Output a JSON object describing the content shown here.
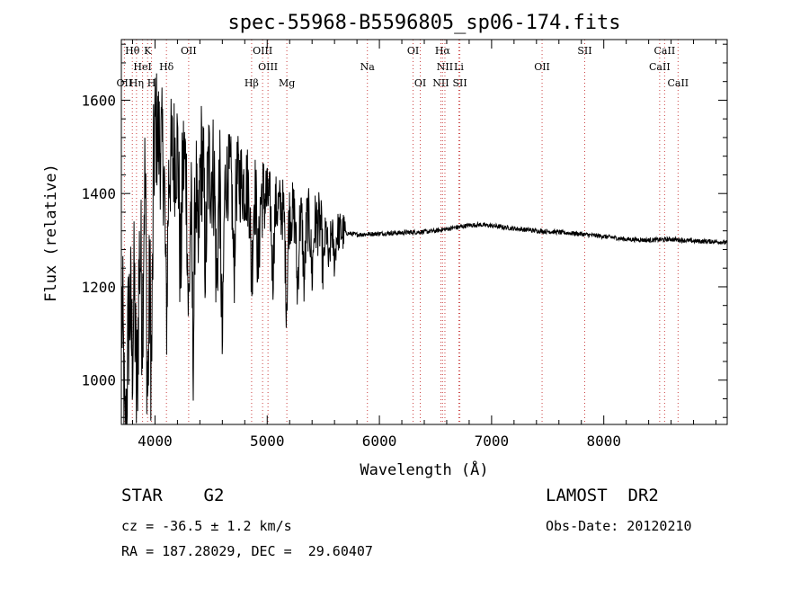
{
  "chart_data": {
    "type": "line",
    "title": "spec-55968-B5596805_sp06-174.fits",
    "xlabel": "Wavelength (Å)",
    "ylabel": "Flux (relative)",
    "xlim": [
      3700,
      9100
    ],
    "ylim": [
      905,
      1730
    ],
    "x_ticks": [
      4000,
      5000,
      6000,
      7000,
      8000
    ],
    "y_ticks": [
      1000,
      1200,
      1400,
      1600
    ],
    "grid": false,
    "colors": {
      "line": "#000000",
      "markers": "#cc4444",
      "axes": "#000000"
    },
    "spectrum_anchors": [
      [
        3705,
        1150
      ],
      [
        3750,
        1050
      ],
      [
        3800,
        1300
      ],
      [
        3850,
        1200
      ],
      [
        3900,
        1500
      ],
      [
        3950,
        1350
      ],
      [
        4000,
        1550
      ],
      [
        4100,
        1450
      ],
      [
        4200,
        1500
      ],
      [
        4300,
        1450
      ],
      [
        4400,
        1480
      ],
      [
        4500,
        1450
      ],
      [
        4600,
        1430
      ],
      [
        4700,
        1440
      ],
      [
        4800,
        1420
      ],
      [
        4900,
        1400
      ],
      [
        5000,
        1390
      ],
      [
        5100,
        1370
      ],
      [
        5200,
        1360
      ],
      [
        5300,
        1350
      ],
      [
        5400,
        1340
      ],
      [
        5500,
        1330
      ],
      [
        5600,
        1320
      ],
      [
        5700,
        1315
      ],
      [
        5800,
        1312
      ],
      [
        5900,
        1313
      ],
      [
        6000,
        1314
      ],
      [
        6200,
        1316
      ],
      [
        6400,
        1318
      ],
      [
        6500,
        1320
      ],
      [
        6600,
        1324
      ],
      [
        6700,
        1328
      ],
      [
        6800,
        1332
      ],
      [
        6900,
        1333
      ],
      [
        7000,
        1331
      ],
      [
        7200,
        1325
      ],
      [
        7400,
        1320
      ],
      [
        7600,
        1317
      ],
      [
        7800,
        1313
      ],
      [
        8000,
        1308
      ],
      [
        8200,
        1302
      ],
      [
        8400,
        1300
      ],
      [
        8600,
        1302
      ],
      [
        8800,
        1298
      ],
      [
        9000,
        1297
      ],
      [
        9100,
        1295
      ]
    ],
    "absorption_lines": [
      {
        "x": 3734,
        "depth": 240
      },
      {
        "x": 3798,
        "depth": 220
      },
      {
        "x": 3835,
        "depth": 260
      },
      {
        "x": 3889,
        "depth": 280
      },
      {
        "x": 3934,
        "depth": 420
      },
      {
        "x": 3969,
        "depth": 380
      },
      {
        "x": 4102,
        "depth": 300
      },
      {
        "x": 4227,
        "depth": 250
      },
      {
        "x": 4300,
        "depth": 300
      },
      {
        "x": 4340,
        "depth": 380
      },
      {
        "x": 4384,
        "depth": 220
      },
      {
        "x": 4450,
        "depth": 200
      },
      {
        "x": 4550,
        "depth": 230
      },
      {
        "x": 4600,
        "depth": 350
      },
      {
        "x": 4703,
        "depth": 200
      },
      {
        "x": 4861,
        "depth": 180
      },
      {
        "x": 4920,
        "depth": 160
      },
      {
        "x": 5050,
        "depth": 150
      },
      {
        "x": 5172,
        "depth": 190
      },
      {
        "x": 5270,
        "depth": 150
      },
      {
        "x": 5330,
        "depth": 130
      },
      {
        "x": 5400,
        "depth": 110
      },
      {
        "x": 5500,
        "depth": 90
      },
      {
        "x": 5550,
        "depth": 80
      },
      {
        "x": 5600,
        "depth": 60
      }
    ],
    "line_markers": [
      {
        "label": "Hθ",
        "x": 3798,
        "row": 0
      },
      {
        "label": "K",
        "x": 3934,
        "row": 0
      },
      {
        "label": "OII",
        "x": 4300,
        "row": 0
      },
      {
        "label": "OIII",
        "x": 4959,
        "row": 0
      },
      {
        "label": "OI",
        "x": 6300,
        "row": 0
      },
      {
        "label": "Hα",
        "x": 6563,
        "row": 0
      },
      {
        "label": "SII",
        "x": 7830,
        "row": 0
      },
      {
        "label": "CaII",
        "x": 8542,
        "row": 0
      },
      {
        "label": "HeI",
        "x": 3889,
        "row": 1
      },
      {
        "label": "Hδ",
        "x": 4102,
        "row": 1
      },
      {
        "label": "OIII",
        "x": 5007,
        "row": 1
      },
      {
        "label": "Na",
        "x": 5893,
        "row": 1
      },
      {
        "label": "NII",
        "x": 6584,
        "row": 1
      },
      {
        "label": "Li",
        "x": 6708,
        "row": 1
      },
      {
        "label": "OII",
        "x": 7450,
        "row": 1
      },
      {
        "label": "CaII",
        "x": 8498,
        "row": 1
      },
      {
        "label": "OII",
        "x": 3727,
        "row": 2
      },
      {
        "label": "Hη",
        "x": 3835,
        "row": 2
      },
      {
        "label": "H",
        "x": 3969,
        "row": 2
      },
      {
        "label": "Hβ",
        "x": 4861,
        "row": 2
      },
      {
        "label": "Mg",
        "x": 5175,
        "row": 2
      },
      {
        "label": "OI",
        "x": 6364,
        "row": 2
      },
      {
        "label": "NII",
        "x": 6548,
        "row": 2
      },
      {
        "label": "SII",
        "x": 6717,
        "row": 2
      },
      {
        "label": "CaII",
        "x": 8662,
        "row": 2
      }
    ]
  },
  "info": {
    "object": "STAR    G2",
    "survey": "LAMOST  DR2",
    "cz": "cz = -36.5 ± 1.2 km/s",
    "obs_date": "Obs-Date: 20120210",
    "coords": "RA = 187.28029, DEC =  29.60407"
  }
}
